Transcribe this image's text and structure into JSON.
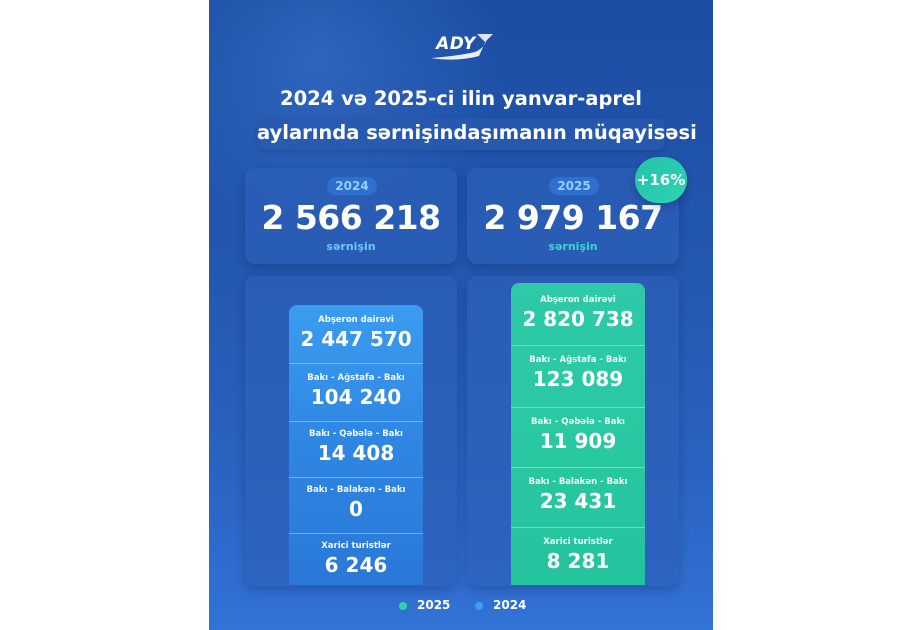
{
  "brand": {
    "logo_text": "ADY"
  },
  "title": {
    "line1": "2024 və 2025-ci ilin yanvar-aprel",
    "line2": "aylarında sərnişindaşımanın müqayisəsi"
  },
  "totals": [
    {
      "year": "2024",
      "value": "2 566 218",
      "caption": "sərnişin"
    },
    {
      "year": "2025",
      "value": "2 979 167",
      "caption": "sərnişin"
    }
  ],
  "growth_badge": "+16%",
  "breakdown_2024": [
    {
      "label": "Abşeron dairəvi",
      "value": "2 447 570"
    },
    {
      "label": "Bakı - Ağstafa - Bakı",
      "value": "104 240"
    },
    {
      "label": "Bakı - Qəbələ - Bakı",
      "value": "14 408"
    },
    {
      "label": "Bakı - Balakən - Bakı",
      "value": "0"
    },
    {
      "label": "Xarici turistlər",
      "value": "6 246"
    }
  ],
  "breakdown_2025": [
    {
      "label": "Abşeron dairəvi",
      "value": "2 820 738"
    },
    {
      "label": "Bakı - Ağstafa - Bakı",
      "value": "123 089"
    },
    {
      "label": "Bakı - Qəbələ - Bakı",
      "value": "11 909"
    },
    {
      "label": "Bakı - Balakən - Bakı",
      "value": "23 431"
    },
    {
      "label": "Xarici turistlər",
      "value": "8 281"
    }
  ],
  "legend": [
    {
      "label": "2025",
      "color": "#2fd3a6"
    },
    {
      "label": "2024",
      "color": "#3aa0f0"
    }
  ],
  "colors": {
    "background": "#1f52a8",
    "col_2024": "#2f86e2",
    "col_2025": "#29c9a2",
    "accent_2025": "#3fd6c9"
  }
}
